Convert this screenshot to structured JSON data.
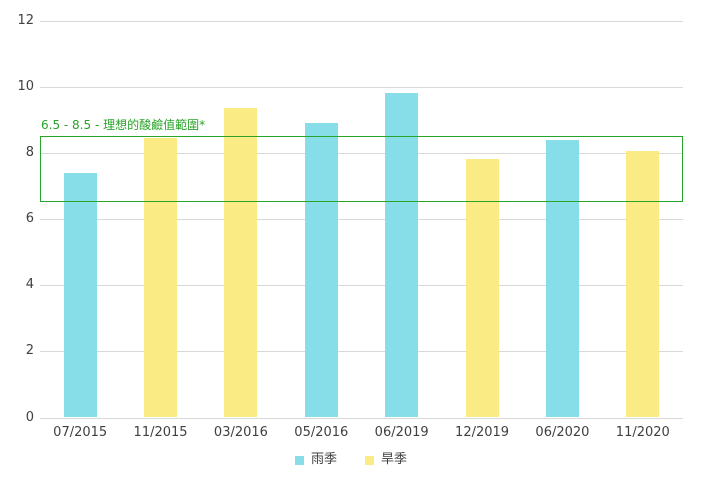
{
  "chart_data": {
    "type": "bar",
    "title": "",
    "xlabel": "",
    "ylabel": "",
    "categories": [
      "07/2015",
      "11/2015",
      "03/2016",
      "05/2016",
      "06/2019",
      "12/2019",
      "06/2020",
      "11/2020"
    ],
    "series": [
      {
        "name": "雨季",
        "color": "#87dee9",
        "values": [
          7.4,
          null,
          null,
          8.9,
          9.8,
          null,
          8.4,
          null
        ]
      },
      {
        "name": "旱季",
        "color": "#fbeb85",
        "values": [
          null,
          8.45,
          9.35,
          null,
          null,
          7.8,
          null,
          8.05
        ]
      }
    ],
    "ylim": [
      0,
      12
    ],
    "yticks": [
      0,
      2,
      4,
      6,
      8,
      10,
      12
    ],
    "grid": true,
    "grid_color": "#d9d9d9",
    "text_color": "#404040",
    "legend_position": "bottom",
    "annotation": {
      "label": "6.5 - 8.5 - 理想的酸鹼值範圍*",
      "from": 6.5,
      "to": 8.5,
      "color": "#28a428"
    }
  }
}
